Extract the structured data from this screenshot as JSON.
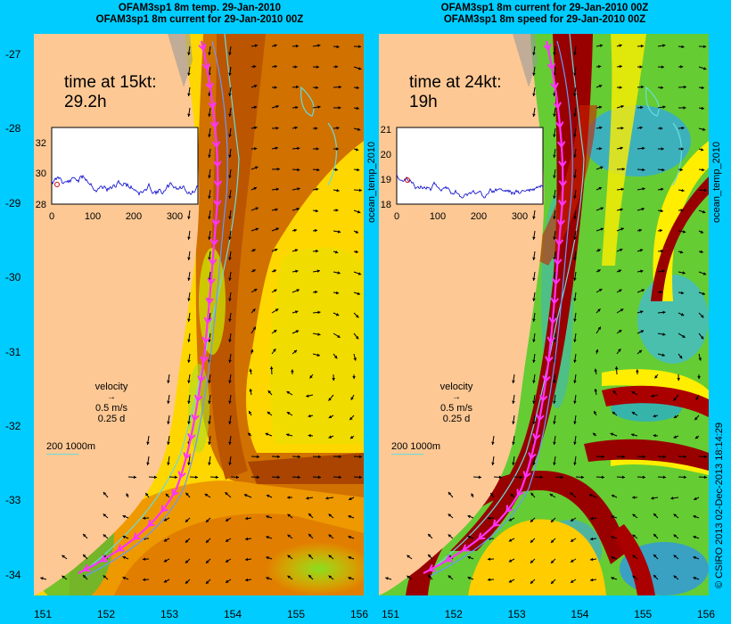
{
  "left_panel": {
    "title_line1": "OFAM3sp1 8m temp. 29-Jan-2010",
    "title_line2": "OFAM3sp1 8m current for 29-Jan-2010 00Z",
    "time_label_line1": "time at 15kt:",
    "time_label_line2": "29.2h",
    "inset_yticks": [
      "32",
      "30",
      "28"
    ],
    "inset_xticks": [
      "0",
      "100",
      "200",
      "300"
    ],
    "side_label": "ocean_temp_2010"
  },
  "right_panel": {
    "title_line1": "OFAM3sp1 8m current for 29-Jan-2010 00Z",
    "title_line2": "OFAM3sp1 8m speed for 29-Jan-2010 00Z",
    "time_label_line1": "time at 24kt:",
    "time_label_line2": "19h",
    "inset_yticks": [
      "21",
      "20",
      "19",
      "18"
    ],
    "inset_xticks": [
      "0",
      "100",
      "200",
      "300"
    ],
    "side_label": "ocean_temp_2010"
  },
  "legend": {
    "line1": "velocity",
    "line2": "0.5 m/s",
    "line3": "0.25 d",
    "scale_text": "200  1000m"
  },
  "lat_ticks": [
    "-27",
    "-28",
    "-29",
    "-30",
    "-31",
    "-32",
    "-33",
    "-34"
  ],
  "lon_ticks": [
    "151",
    "152",
    "153",
    "154",
    "155",
    "156"
  ],
  "credit": "© CSIRO 2013  02-Dec-2013 18:14:29",
  "colors": {
    "background": "#00ccff",
    "land": "#fdc894",
    "route": "#ff33ff",
    "contour": "#66dddd"
  }
}
